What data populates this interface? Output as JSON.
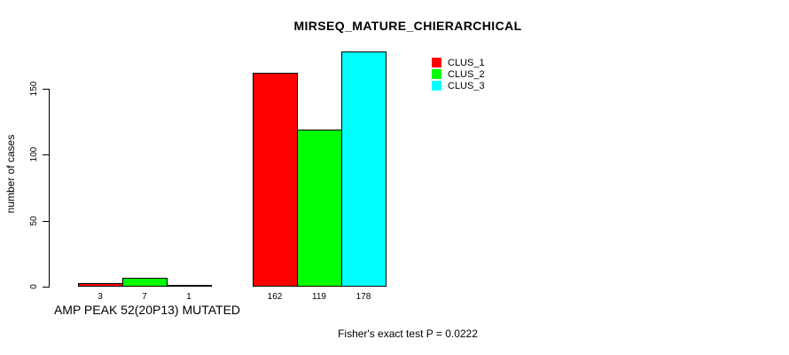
{
  "chart_data": {
    "type": "bar",
    "title": "MIRSEQ_MATURE_CHIERARCHICAL",
    "ylabel": "number of cases",
    "xlabel": "AMP PEAK 52(20P13) MUTATED",
    "annotation": "Fisher's exact test P = 0.0222",
    "ylim": [
      0,
      150
    ],
    "yticks": [
      0,
      50,
      100,
      150
    ],
    "grid": false,
    "legend_position": "top-right",
    "categories": [
      "AMP PEAK 52(20P13) MUTATED",
      ""
    ],
    "series": [
      {
        "name": "CLUS_1",
        "color": "#ff0000",
        "values": [
          3,
          162
        ]
      },
      {
        "name": "CLUS_2",
        "color": "#00ff00",
        "values": [
          7,
          119
        ]
      },
      {
        "name": "CLUS_3",
        "color": "#00ffff",
        "values": [
          1,
          178
        ]
      }
    ],
    "bar_labels": [
      [
        "3",
        "7",
        "1"
      ],
      [
        "162",
        "119",
        "178"
      ]
    ]
  }
}
